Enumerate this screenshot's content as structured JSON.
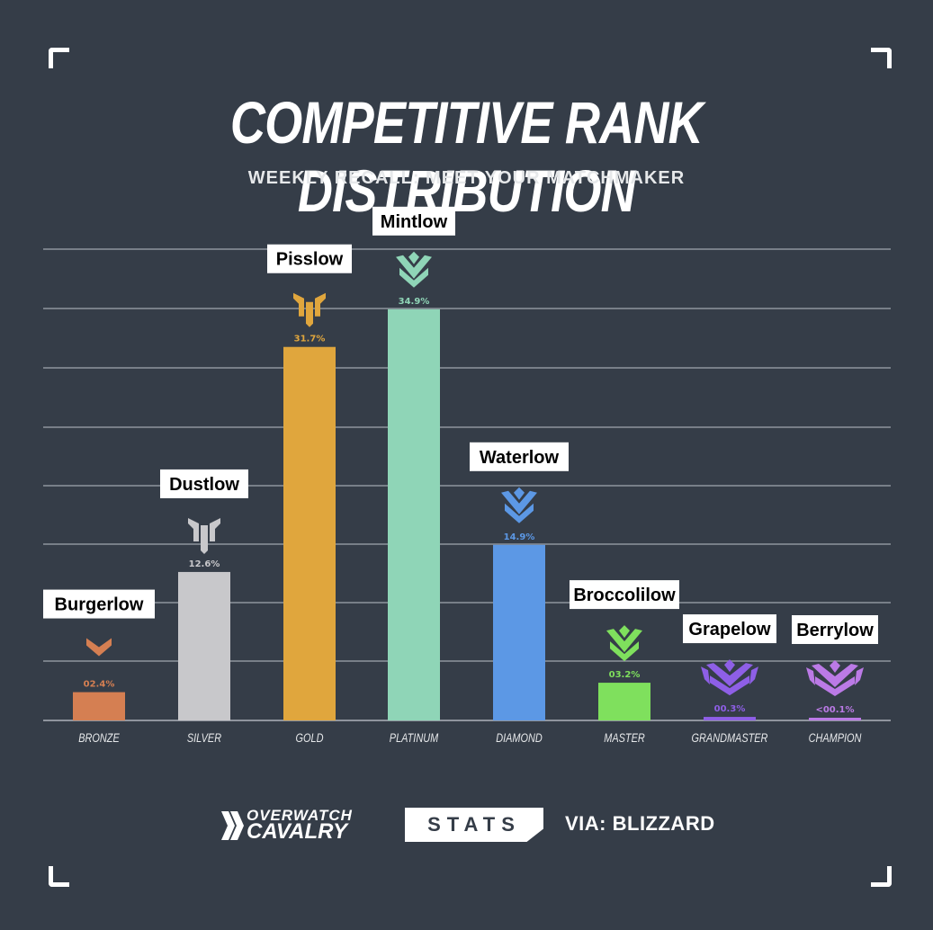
{
  "title": "COMPETITIVE RANK DISTRIBUTION",
  "subtitle": "WEEKLY RECALL: MEET YOUR MATCHMAKER",
  "footer": {
    "brand_line1": "OVERWATCH",
    "brand_line2": "CAVALRY",
    "badge": "STATS",
    "source": "VIA: BLIZZARD"
  },
  "colors": {
    "background": "#353d48",
    "gridline": "#8f959e",
    "text": "#ffffff"
  },
  "chart_data": {
    "type": "bar",
    "title": "COMPETITIVE RANK DISTRIBUTION",
    "subtitle": "WEEKLY RECALL: MEET YOUR MATCHMAKER",
    "xlabel": "",
    "ylabel": "",
    "ylim": [
      0,
      40
    ],
    "grid": true,
    "categories": [
      "BRONZE",
      "SILVER",
      "GOLD",
      "PLATINUM",
      "DIAMOND",
      "MASTER",
      "GRANDMASTER",
      "CHAMPION"
    ],
    "values": [
      2.4,
      12.6,
      31.7,
      34.9,
      14.9,
      3.2,
      0.3,
      0.1
    ],
    "value_labels": [
      "02.4%",
      "12.6%",
      "31.7%",
      "34.9%",
      "14.9%",
      "03.2%",
      "00.3%",
      "<00.1%"
    ],
    "annotations": [
      "Burgerlow",
      "Dustlow",
      "Pisslow",
      "Mintlow",
      "Waterlow",
      "Broccolilow",
      "Grapelow",
      "Berrylow"
    ],
    "colors": [
      "#d57f52",
      "#c8c8cb",
      "#e0a63d",
      "#8fd5b7",
      "#5c98e5",
      "#7fe05d",
      "#8e5fe6",
      "#bb7ae6"
    ],
    "icons": [
      "bronze-rank-icon",
      "silver-rank-icon",
      "gold-rank-icon",
      "platinum-rank-icon",
      "diamond-rank-icon",
      "master-rank-icon",
      "grandmaster-rank-icon",
      "champion-rank-icon"
    ]
  }
}
